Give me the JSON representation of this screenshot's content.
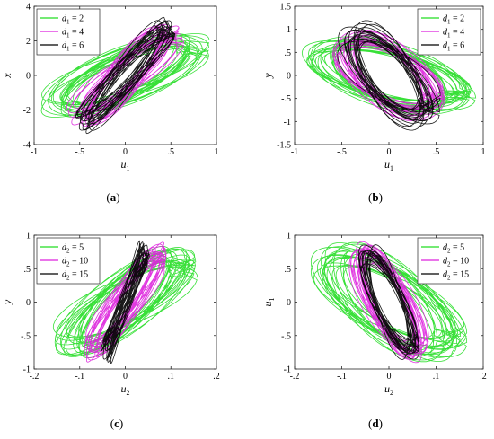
{
  "figure": {
    "colors": {
      "green": "#22dd22",
      "magenta": "#dd22dd",
      "black": "#000000"
    }
  },
  "chart_data": [
    {
      "type": "scatter",
      "panel_label": "(a)",
      "xlabel": "u",
      "xlabel_sub": "1",
      "ylabel": "x",
      "ylabel_sub": "",
      "xlim": [
        -1,
        1
      ],
      "ylim": [
        -4,
        4
      ],
      "xticks": [
        -1,
        -0.5,
        0,
        0.5,
        1
      ],
      "yticks": [
        -4,
        -2,
        0,
        2,
        4
      ],
      "legend_position": "top-left",
      "series": [
        {
          "name": "d1 = 2",
          "label_main": "d",
          "label_sub": "1",
          "label_rest": " = 2",
          "color": "#22dd22",
          "x_amplitude": 0.97,
          "y_amplitude": 2.5,
          "correlation": 0.75,
          "cycles": 22
        },
        {
          "name": "d1 = 4",
          "label_main": "d",
          "label_sub": "1",
          "label_rest": " = 4",
          "color": "#dd22dd",
          "x_amplitude": 0.65,
          "y_amplitude": 3.0,
          "correlation": 0.9,
          "cycles": 20
        },
        {
          "name": "d1 = 6",
          "label_main": "d",
          "label_sub": "1",
          "label_rest": " = 6",
          "color": "#000000",
          "x_amplitude": 0.55,
          "y_amplitude": 3.4,
          "correlation": 0.96,
          "cycles": 18
        }
      ]
    },
    {
      "type": "scatter",
      "panel_label": "(b)",
      "xlabel": "u",
      "xlabel_sub": "1",
      "ylabel": "y",
      "ylabel_sub": "",
      "xlim": [
        -1,
        1
      ],
      "ylim": [
        -1.5,
        1.5
      ],
      "xticks": [
        -1,
        -0.5,
        0,
        0.5,
        1
      ],
      "yticks": [
        -1.5,
        -1,
        -0.5,
        0,
        0.5,
        1,
        1.5
      ],
      "legend_position": "top-right",
      "series": [
        {
          "name": "d1 = 2",
          "label_main": "d",
          "label_sub": "1",
          "label_rest": " = 2",
          "color": "#22dd22",
          "x_amplitude": 0.95,
          "y_amplitude": 0.9,
          "correlation": -0.55,
          "cycles": 22
        },
        {
          "name": "d1 = 4",
          "label_main": "d",
          "label_sub": "1",
          "label_rest": " = 4",
          "color": "#dd22dd",
          "x_amplitude": 0.6,
          "y_amplitude": 1.0,
          "correlation": -0.6,
          "cycles": 20
        },
        {
          "name": "d1 = 6",
          "label_main": "d",
          "label_sub": "1",
          "label_rest": " = 6",
          "color": "#000000",
          "x_amplitude": 0.55,
          "y_amplitude": 1.2,
          "correlation": -0.65,
          "cycles": 18
        }
      ]
    },
    {
      "type": "scatter",
      "panel_label": "(c)",
      "xlabel": "u",
      "xlabel_sub": "2",
      "ylabel": "y",
      "ylabel_sub": "",
      "xlim": [
        -0.2,
        0.2
      ],
      "ylim": [
        -1,
        1
      ],
      "xticks": [
        -0.2,
        -0.1,
        0,
        0.1,
        0.2
      ],
      "yticks": [
        -1,
        -0.5,
        0,
        0.5,
        1
      ],
      "legend_position": "top-left",
      "series": [
        {
          "name": "d2 = 5",
          "label_main": "d",
          "label_sub": "2",
          "label_rest": " = 5",
          "color": "#22dd22",
          "x_amplitude": 0.16,
          "y_amplitude": 0.85,
          "correlation": 0.8,
          "cycles": 22
        },
        {
          "name": "d2 = 10",
          "label_main": "d",
          "label_sub": "2",
          "label_rest": " = 10",
          "color": "#dd22dd",
          "x_amplitude": 0.09,
          "y_amplitude": 0.9,
          "correlation": 0.92,
          "cycles": 20
        },
        {
          "name": "d2 = 15",
          "label_main": "d",
          "label_sub": "2",
          "label_rest": " = 15",
          "color": "#000000",
          "x_amplitude": 0.055,
          "y_amplitude": 0.92,
          "correlation": 0.985,
          "cycles": 18
        }
      ]
    },
    {
      "type": "scatter",
      "panel_label": "(d)",
      "xlabel": "u",
      "xlabel_sub": "2",
      "ylabel": "u",
      "ylabel_sub": "1",
      "xlim": [
        -0.2,
        0.2
      ],
      "ylim": [
        -1,
        1
      ],
      "xticks": [
        -0.2,
        -0.1,
        0,
        0.1,
        0.2
      ],
      "yticks": [
        -1,
        -0.5,
        0,
        0.5,
        1
      ],
      "legend_position": "top-right",
      "series": [
        {
          "name": "d2 = 5",
          "label_main": "d",
          "label_sub": "2",
          "label_rest": " = 5",
          "color": "#22dd22",
          "x_amplitude": 0.17,
          "y_amplitude": 0.9,
          "correlation": -0.7,
          "cycles": 22
        },
        {
          "name": "d2 = 10",
          "label_main": "d",
          "label_sub": "2",
          "label_rest": " = 10",
          "color": "#dd22dd",
          "x_amplitude": 0.085,
          "y_amplitude": 0.95,
          "correlation": -0.75,
          "cycles": 20
        },
        {
          "name": "d2 = 15",
          "label_main": "d",
          "label_sub": "2",
          "label_rest": " = 15",
          "color": "#000000",
          "x_amplitude": 0.065,
          "y_amplitude": 0.95,
          "correlation": -0.8,
          "cycles": 18
        }
      ]
    }
  ]
}
